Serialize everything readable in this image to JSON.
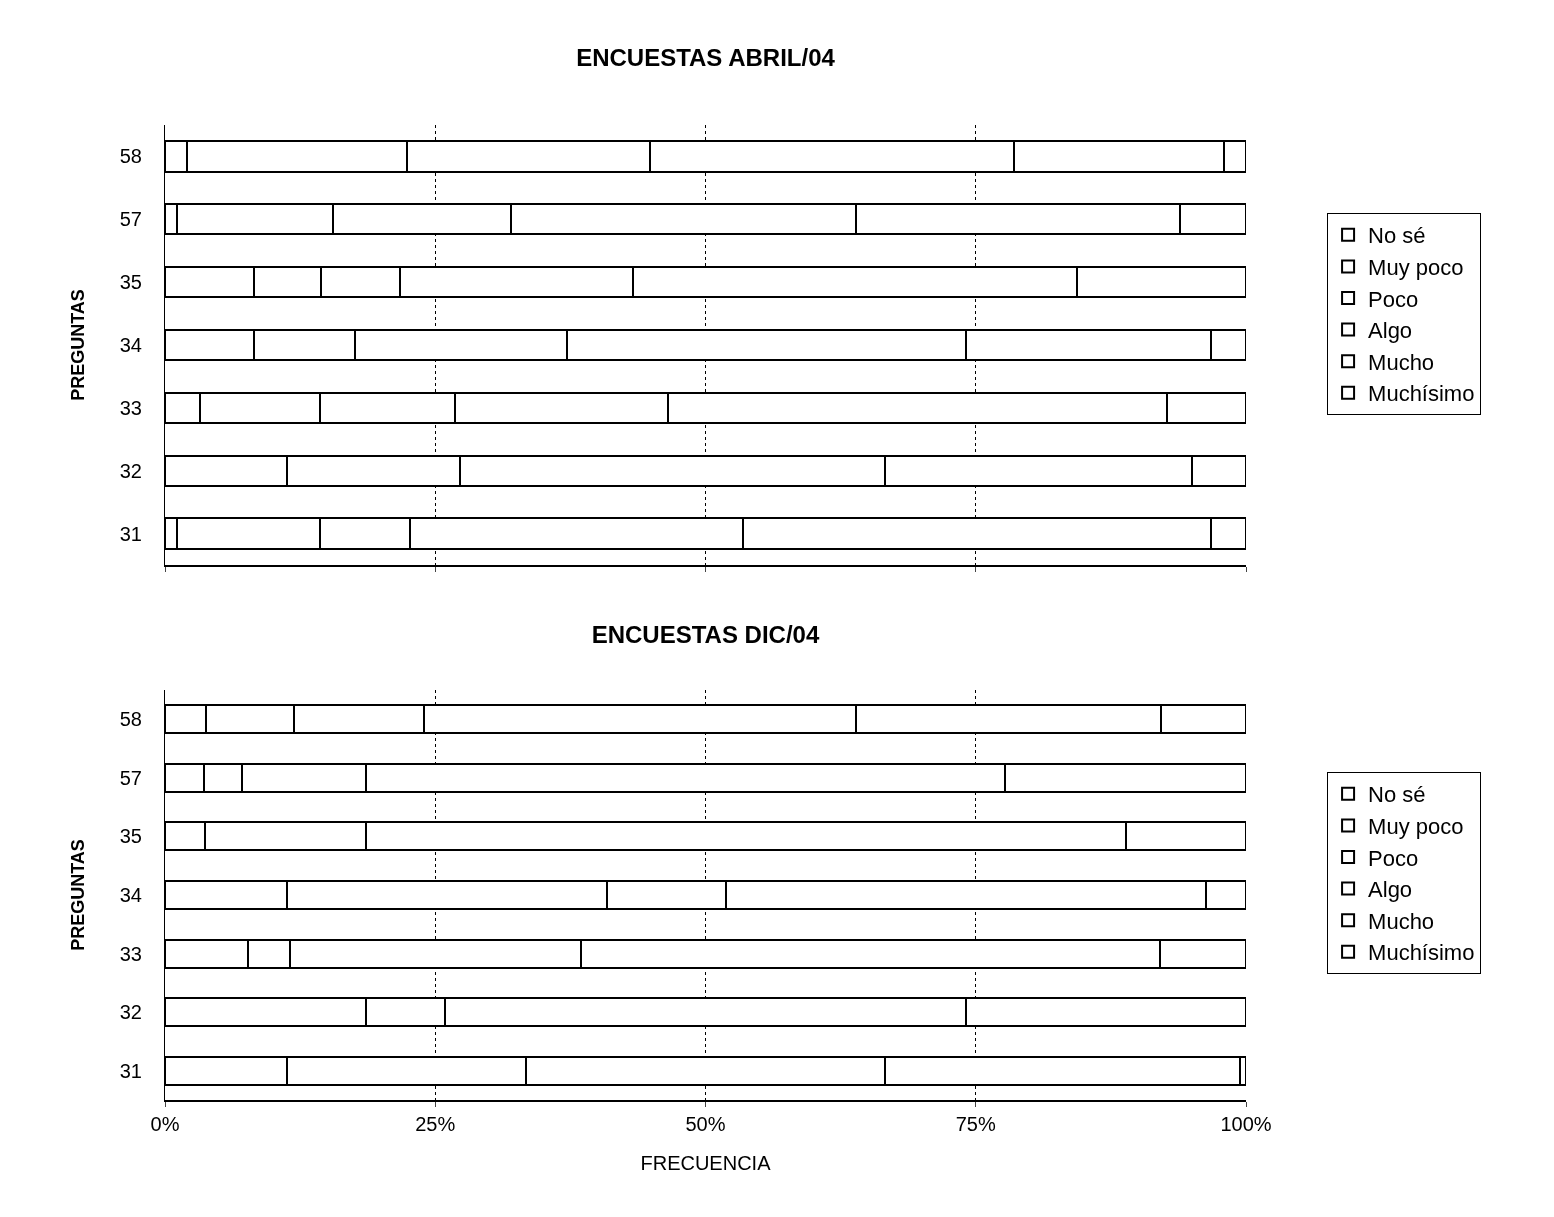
{
  "chart_data": [
    {
      "type": "bar",
      "orientation": "horizontal",
      "stacked": true,
      "title": "ENCUESTAS ABRIL/04",
      "ylabel": "PREGUNTAS",
      "categories": [
        "58",
        "57",
        "35",
        "34",
        "33",
        "32",
        "31"
      ],
      "xlim": [
        0,
        100
      ],
      "xticks": [
        0,
        25,
        50,
        75,
        100
      ],
      "tick_labels": "y",
      "grid": "x",
      "legend": "right",
      "series": [
        {
          "name": "No sé",
          "color": "#ffffff",
          "values": [
            2.0,
            1.1,
            8.2,
            8.2,
            3.2,
            0,
            1.1
          ]
        },
        {
          "name": "Muy poco",
          "color": "#ffffff",
          "values": [
            20.4,
            14.4,
            6.2,
            9.4,
            11.1,
            11.3,
            13.2
          ]
        },
        {
          "name": "Poco",
          "color": "#ffffff",
          "values": [
            22.5,
            16.5,
            7.3,
            19.6,
            12.5,
            16.0,
            8.4
          ]
        },
        {
          "name": "Algo",
          "color": "#ffffff",
          "values": [
            33.6,
            31.9,
            21.6,
            36.9,
            19.7,
            39.3,
            30.8
          ]
        },
        {
          "name": "Mucho",
          "color": "#ffffff",
          "values": [
            19.5,
            30.0,
            41.1,
            22.7,
            46.2,
            28.4,
            43.3
          ]
        },
        {
          "name": "Muchísimo",
          "color": "#ffffff",
          "values": [
            2.0,
            6.1,
            15.6,
            3.2,
            7.3,
            5.0,
            3.2
          ]
        }
      ]
    },
    {
      "type": "bar",
      "orientation": "horizontal",
      "stacked": true,
      "title": "ENCUESTAS DIC/04",
      "xlabel": "FRECUENCIA",
      "ylabel": "PREGUNTAS",
      "categories": [
        "58",
        "57",
        "35",
        "34",
        "33",
        "32",
        "31"
      ],
      "xlim": [
        0,
        100
      ],
      "xticks": [
        {
          "value": 0,
          "label": "0%"
        },
        {
          "value": 25,
          "label": "25%"
        },
        {
          "value": 50,
          "label": "50%"
        },
        {
          "value": 75,
          "label": "75%"
        },
        {
          "value": 100,
          "label": "100%"
        }
      ],
      "grid": "x",
      "legend": "right",
      "series": [
        {
          "name": "No sé",
          "color": "#ffffff",
          "values": [
            3.8,
            3.6,
            3.7,
            0,
            0,
            0,
            0
          ]
        },
        {
          "name": "Muy poco",
          "color": "#ffffff",
          "values": [
            8.1,
            3.5,
            0,
            11.3,
            7.7,
            18.6,
            11.3
          ]
        },
        {
          "name": "Poco",
          "color": "#ffffff",
          "values": [
            12.1,
            11.5,
            14.9,
            29.6,
            3.9,
            7.3,
            22.1
          ]
        },
        {
          "name": "Algo",
          "color": "#ffffff",
          "values": [
            39.9,
            59.1,
            70.3,
            11.0,
            26.9,
            48.2,
            33.2
          ]
        },
        {
          "name": "Mucho",
          "color": "#ffffff",
          "values": [
            28.2,
            22.3,
            11.1,
            44.4,
            53.5,
            25.9,
            32.8
          ]
        },
        {
          "name": "Muchísimo",
          "color": "#ffffff",
          "values": [
            7.9,
            0,
            0,
            3.7,
            8.0,
            0,
            0.6
          ]
        }
      ]
    }
  ]
}
